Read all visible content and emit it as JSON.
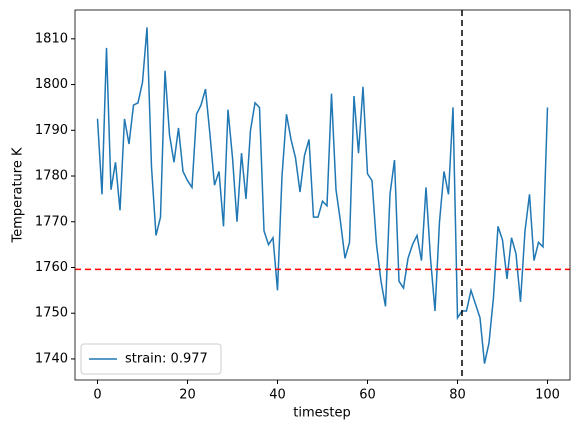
{
  "chart_data": {
    "type": "line",
    "xlabel": "timestep",
    "ylabel": "Temperature K",
    "x": [
      0,
      1,
      2,
      3,
      4,
      5,
      6,
      7,
      8,
      9,
      10,
      11,
      12,
      13,
      14,
      15,
      16,
      17,
      18,
      19,
      20,
      21,
      22,
      23,
      24,
      25,
      26,
      27,
      28,
      29,
      30,
      31,
      32,
      33,
      34,
      35,
      36,
      37,
      38,
      39,
      40,
      41,
      42,
      43,
      44,
      45,
      46,
      47,
      48,
      49,
      50,
      51,
      52,
      53,
      54,
      55,
      56,
      57,
      58,
      59,
      60,
      61,
      62,
      63,
      64,
      65,
      66,
      67,
      68,
      69,
      70,
      71,
      72,
      73,
      74,
      75,
      76,
      77,
      78,
      79,
      80,
      81,
      82,
      83,
      84,
      85,
      86,
      87,
      88,
      89,
      90,
      91,
      92,
      93,
      94,
      95,
      96,
      97,
      98,
      99,
      100
    ],
    "series": [
      {
        "name": "strain: 0.977",
        "color": "#1f77b4",
        "values": [
          1792.5,
          1776,
          1808,
          1777,
          1783,
          1772.5,
          1792.5,
          1787,
          1795.5,
          1796,
          1800.5,
          1812.5,
          1782,
          1767,
          1771,
          1803,
          1789,
          1783,
          1790.5,
          1781,
          1779,
          1777.5,
          1793.5,
          1795.5,
          1799,
          1789,
          1778,
          1781,
          1769,
          1794.5,
          1784,
          1770,
          1785,
          1775,
          1790,
          1796,
          1795,
          1768,
          1765,
          1766.5,
          1755,
          1780,
          1793.5,
          1788,
          1784,
          1776.5,
          1784.5,
          1788,
          1771,
          1771,
          1774.5,
          1773.5,
          1798,
          1777,
          1770,
          1762,
          1765.5,
          1797.5,
          1785,
          1799.5,
          1780.5,
          1779,
          1765,
          1757,
          1751.5,
          1776,
          1783.5,
          1757,
          1755.5,
          1762,
          1765,
          1767,
          1761.5,
          1777.5,
          1762,
          1750.5,
          1770,
          1781,
          1776,
          1795,
          1749,
          1750.5,
          1750.5,
          1755,
          1752,
          1749,
          1739,
          1743.5,
          1753.5,
          1769,
          1766,
          1757.5,
          1766.5,
          1763,
          1752.5,
          1768,
          1776,
          1761.5,
          1765.5,
          1764.5,
          1795
        ]
      }
    ],
    "hline": {
      "value": 1759.6,
      "color": "#ff0000"
    },
    "vline": {
      "value": 81,
      "color": "#000000"
    },
    "xlim": [
      -5,
      105
    ],
    "ylim": [
      1735.4,
      1816.3
    ],
    "xticks": [
      0,
      20,
      40,
      60,
      80,
      100
    ],
    "yticks": [
      1740,
      1750,
      1760,
      1770,
      1780,
      1790,
      1800,
      1810
    ],
    "legend": "lower left"
  }
}
